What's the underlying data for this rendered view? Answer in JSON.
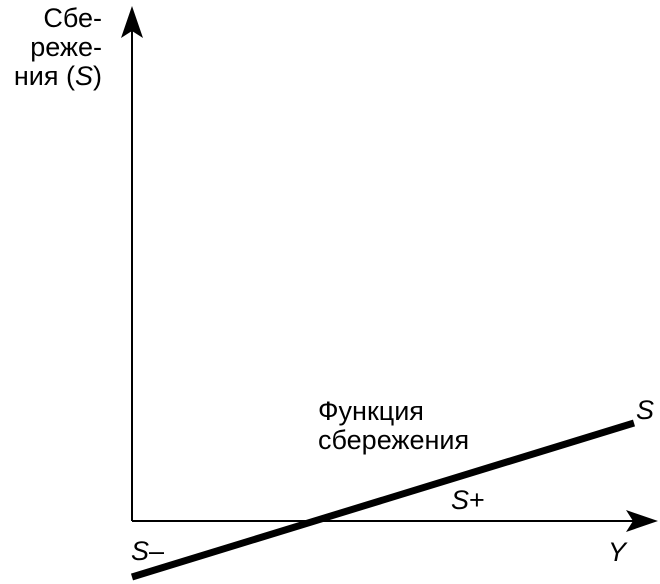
{
  "y_axis_label": {
    "lines": [
      "Сбе-",
      "реже-"
    ],
    "line3_prefix": "ния (",
    "line3_symbol": "S",
    "line3_suffix": ")"
  },
  "x_axis_label": "Y",
  "curve_label": {
    "line1": "Функция",
    "line2": "сбережения"
  },
  "curve_end_label": "S",
  "negative_label": {
    "symbol": "S",
    "sign": "–"
  },
  "positive_label": {
    "symbol": "S",
    "sign": "+"
  },
  "colors": {
    "line": "#000000",
    "background": "#ffffff"
  }
}
